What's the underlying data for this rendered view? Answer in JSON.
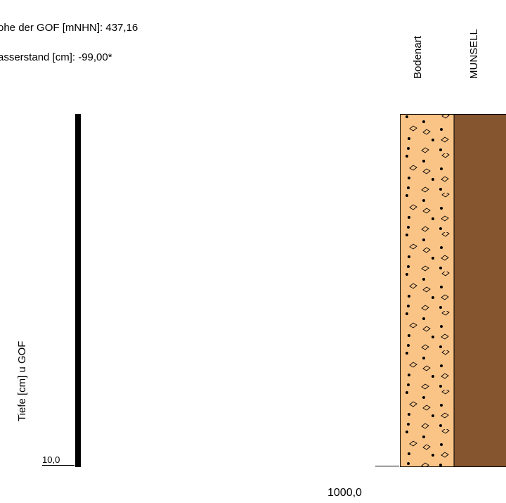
{
  "header": {
    "elevation_text": "ohe der GOF [mNHN]: 437,16",
    "water_text": "asserstand [cm]: -99,00*"
  },
  "axis": {
    "ylabel": "Tiefe [cm] u GOF",
    "top_tick": "10,0",
    "bottom_tick": "1000,0"
  },
  "columns": {
    "soil_type": "Bodenart",
    "munsell": "MUNSELL"
  },
  "colors": {
    "soil_fill": "#fbc487",
    "munsell_fill": "#85552f",
    "stroke": "#000000"
  }
}
